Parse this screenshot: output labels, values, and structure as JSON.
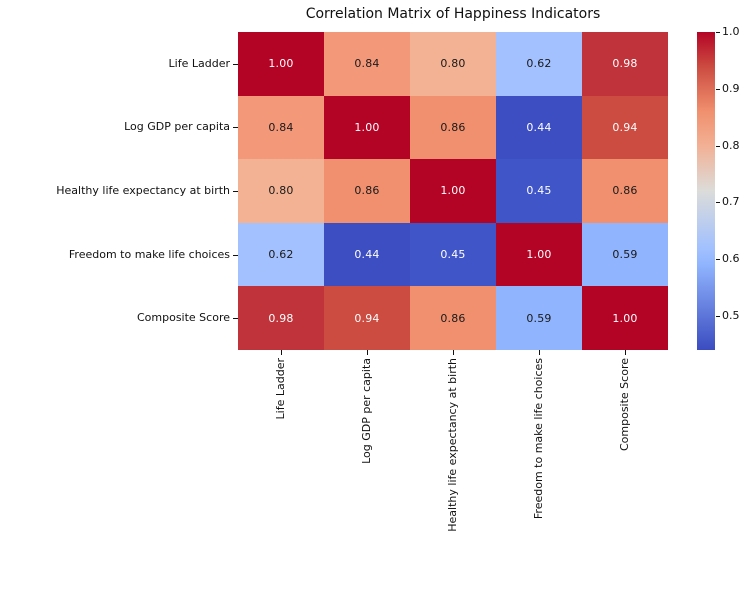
{
  "chart_data": {
    "type": "heatmap",
    "title": "Correlation Matrix of Happiness Indicators",
    "variables": [
      "Life Ladder",
      "Log GDP per capita",
      "Healthy life expectancy at birth",
      "Freedom to make life choices",
      "Composite Score"
    ],
    "matrix": [
      [
        1.0,
        0.84,
        0.8,
        0.62,
        0.98
      ],
      [
        0.84,
        1.0,
        0.86,
        0.44,
        0.94
      ],
      [
        0.8,
        0.86,
        1.0,
        0.45,
        0.86
      ],
      [
        0.62,
        0.44,
        0.45,
        1.0,
        0.59
      ],
      [
        0.98,
        0.94,
        0.86,
        0.59,
        1.0
      ]
    ],
    "annotation_decimals": 2,
    "colormap": "coolwarm",
    "vmin": 0.44,
    "vmax": 1.0,
    "colorbar": {
      "ticks": [
        1.0,
        0.9,
        0.8,
        0.7,
        0.6,
        0.5
      ],
      "gradient_stops": [
        {
          "pos": 0.0,
          "color": "#b40426"
        },
        {
          "pos": 0.107,
          "color": "#cb4a40"
        },
        {
          "pos": 0.25,
          "color": "#f0906e"
        },
        {
          "pos": 0.357,
          "color": "#f2b094"
        },
        {
          "pos": 0.5,
          "color": "#dcdcda"
        },
        {
          "pos": 0.679,
          "color": "#a2c1fe"
        },
        {
          "pos": 0.732,
          "color": "#90b4fe"
        },
        {
          "pos": 1.0,
          "color": "#3b4cc0"
        }
      ]
    },
    "value_styles": {
      "1.00": {
        "bg": "#b40426",
        "fg": "#ffffff"
      },
      "0.98": {
        "bg": "#c0333a",
        "fg": "#ffffff"
      },
      "0.94": {
        "bg": "#cc4c41",
        "fg": "#ffffff"
      },
      "0.86": {
        "bg": "#f1906f",
        "fg": "#1a1a1a"
      },
      "0.84": {
        "bg": "#f4987a",
        "fg": "#1a1a1a"
      },
      "0.80": {
        "bg": "#f3b293",
        "fg": "#1a1a1a"
      },
      "0.62": {
        "bg": "#a2c1fe",
        "fg": "#1a1a1a"
      },
      "0.59": {
        "bg": "#90b4fe",
        "fg": "#1a1a1a"
      },
      "0.45": {
        "bg": "#4055c8",
        "fg": "#ffffff"
      },
      "0.44": {
        "bg": "#3c4ec2",
        "fg": "#ffffff"
      }
    }
  }
}
